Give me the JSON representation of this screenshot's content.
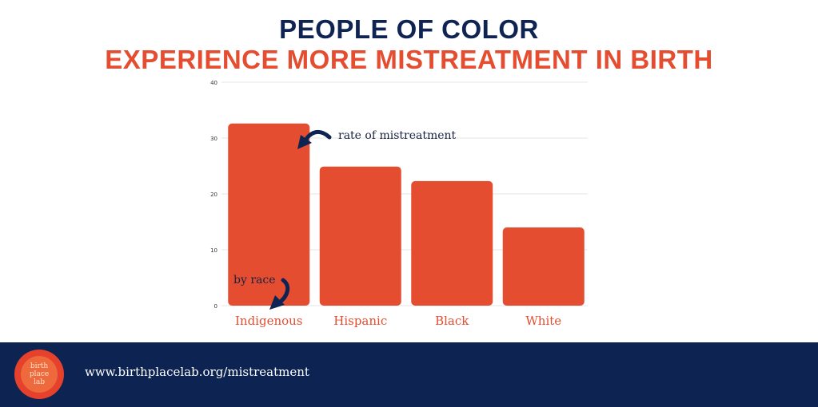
{
  "header": {
    "title_line1": "PEOPLE OF COLOR",
    "title_line2": "EXPERIENCE MORE MISTREATMENT IN BIRTH"
  },
  "chart_data": {
    "type": "bar",
    "categories": [
      "Indigenous",
      "Hispanic",
      "Black",
      "White"
    ],
    "values": [
      32.6,
      24.9,
      22.3,
      14.0
    ],
    "ylim": [
      0,
      40
    ],
    "yticks": [
      0,
      10,
      20,
      30,
      40
    ],
    "grid": true,
    "bar_color": "#e54d31",
    "annotations": [
      "rate of mistreatment",
      "by race"
    ]
  },
  "footer": {
    "logo_text": "birth place lab",
    "url": "www.birthplacelab.org/mistreatment"
  },
  "colors": {
    "navy": "#0d2453",
    "accent": "#e54d31"
  }
}
